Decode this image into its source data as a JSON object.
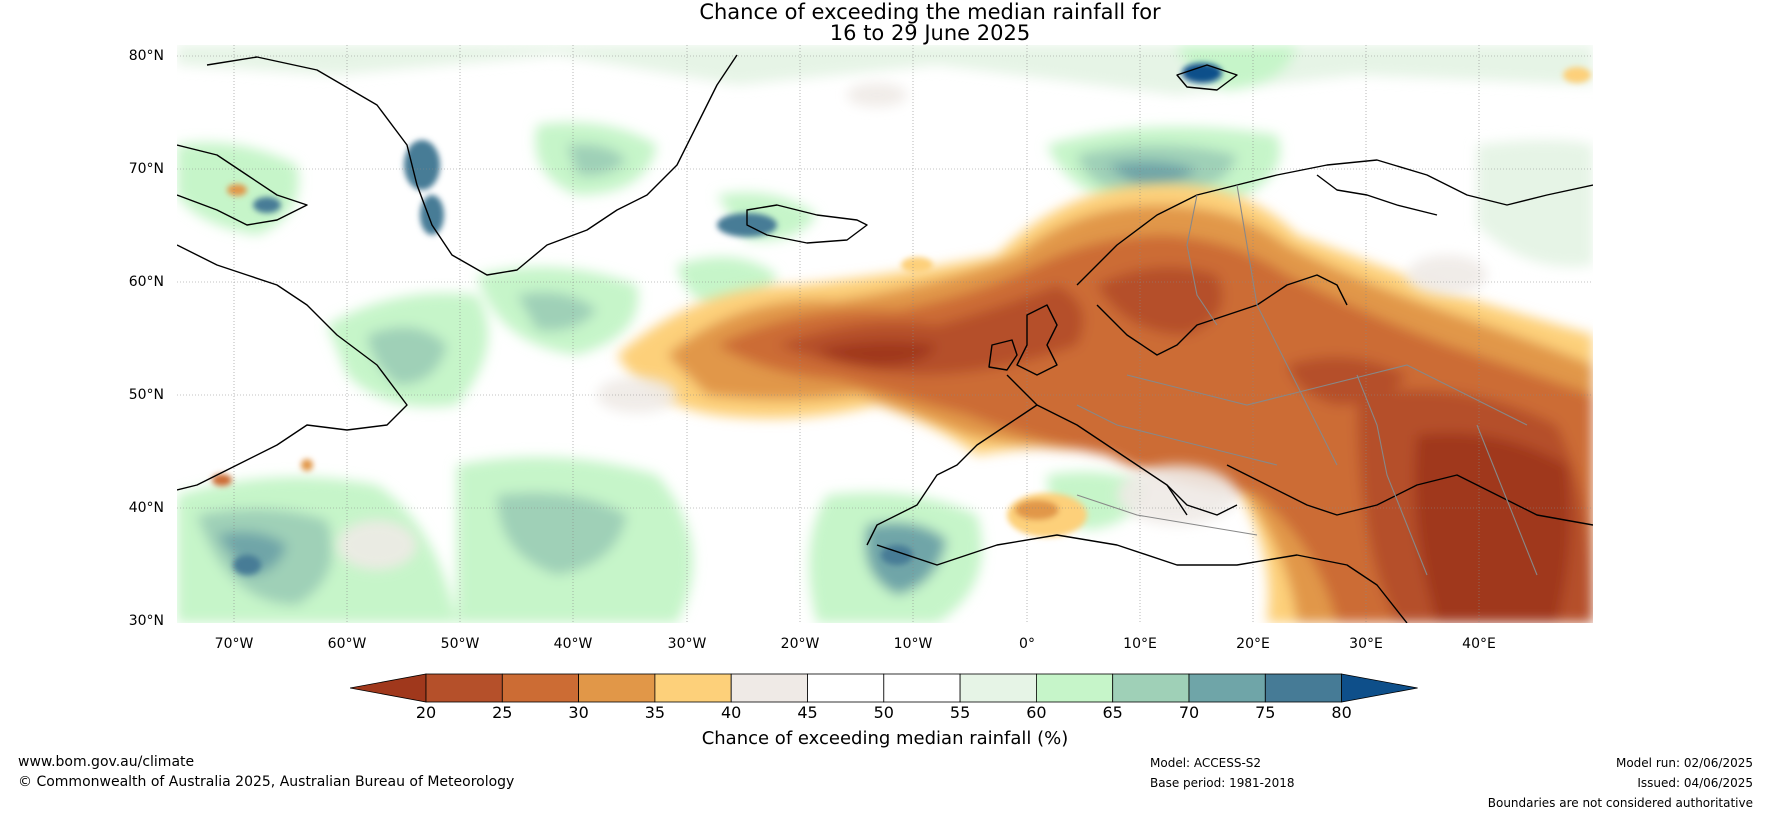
{
  "title": {
    "line1": "Chance of exceeding the median rainfall for",
    "line2": "16 to 29 June 2025"
  },
  "map": {
    "lat_labels": [
      "80°N",
      "70°N",
      "60°N",
      "50°N",
      "40°N",
      "30°N"
    ],
    "lon_labels": [
      "70°W",
      "60°W",
      "50°W",
      "40°W",
      "30°W",
      "20°W",
      "10°W",
      "0°",
      "10°E",
      "20°E",
      "30°E",
      "40°E"
    ]
  },
  "colorbar": {
    "ticks": [
      "20",
      "25",
      "30",
      "35",
      "40",
      "45",
      "50",
      "55",
      "60",
      "65",
      "70",
      "75",
      "80"
    ],
    "colors": [
      "#a0381c",
      "#b5502a",
      "#cc6c34",
      "#e19748",
      "#fdd07a",
      "#efeae6",
      "#ffffff",
      "#ffffff",
      "#e6f4e6",
      "#c6f5c9",
      "#9fd0b7",
      "#6fa5a8",
      "#467b96",
      "#0e4f8a"
    ],
    "label": "Chance of exceeding median rainfall (%)"
  },
  "footer": {
    "website": "www.bom.gov.au/climate",
    "copyright": "© Commonwealth of Australia 2025, Australian Bureau of Meteorology",
    "model": "Model: ACCESS-S2",
    "base_period": "Base period: 1981-2018",
    "model_run": "Model run: 02/06/2025",
    "issued": "Issued: 04/06/2025",
    "disclaimer": "Boundaries are not considered authoritative"
  }
}
